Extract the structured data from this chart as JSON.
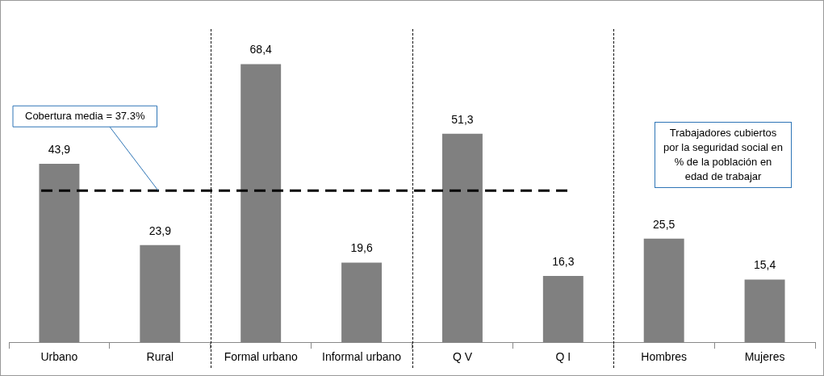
{
  "chart_data": {
    "type": "bar",
    "categories": [
      "Urbano",
      "Rural",
      "Formal urbano",
      "Informal urbano",
      "Q V",
      "Q I",
      "Hombres",
      "Mujeres"
    ],
    "values": [
      43.9,
      23.9,
      68.4,
      19.6,
      51.3,
      16.3,
      25.5,
      15.4
    ],
    "color": "#808080",
    "value_labels": [
      "43,9",
      "23,9",
      "68,4",
      "19,6",
      "51,3",
      "16,3",
      "25,5",
      "15,4"
    ],
    "legend": false,
    "tick_labels": "x",
    "ref_lines": [
      {
        "axis": "y",
        "value": 37.3,
        "label": "Cobertura media = 37.3%",
        "color": "#000000",
        "line_style": "dashed"
      }
    ],
    "annotations": [
      "Trabajadores cubiertos por la seguridad social en % de la población en edad de trabajar"
    ]
  }
}
